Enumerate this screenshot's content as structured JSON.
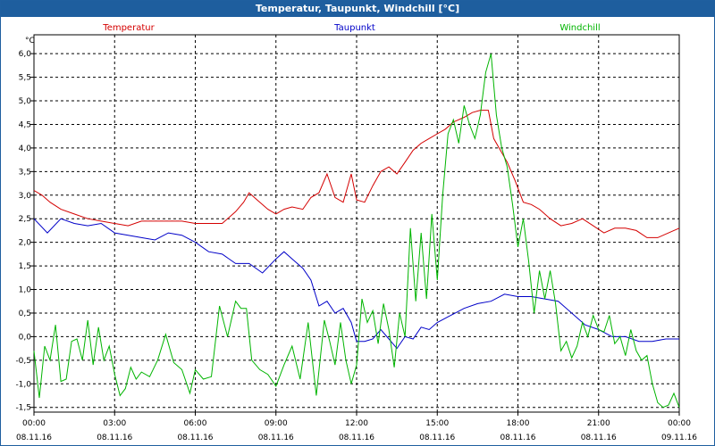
{
  "window": {
    "title": "Temperatur, Taupunkt, Windchill [°C]"
  },
  "chart_data": {
    "type": "line",
    "title": "Temperatur, Taupunkt, Windchill [°C]",
    "ylabel": "°C",
    "ylim": [
      -1.6,
      6.4
    ],
    "yticks": [
      6.0,
      5.5,
      5.0,
      4.5,
      4.0,
      3.5,
      3.0,
      2.5,
      2.0,
      1.5,
      1.0,
      0.5,
      0.0,
      -0.5,
      -1.0,
      -1.5
    ],
    "ytick_labels": [
      "6,0",
      "5,5",
      "5,0",
      "4,5",
      "4,0",
      "3,5",
      "3,0",
      "2,5",
      "2,0",
      "1,5",
      "1,0",
      "0,5",
      "0,0",
      "-0,5",
      "-1,0",
      "-1,5"
    ],
    "xlim": [
      0,
      24
    ],
    "xticks": [
      0,
      3,
      6,
      9,
      12,
      15,
      18,
      21,
      24
    ],
    "xtick_times": [
      "00:00",
      "03:00",
      "06:00",
      "09:00",
      "12:00",
      "15:00",
      "18:00",
      "21:00",
      "00:00"
    ],
    "xtick_dates": [
      "08.11.16",
      "08.11.16",
      "08.11.16",
      "08.11.16",
      "08.11.16",
      "08.11.16",
      "08.11.16",
      "08.11.16",
      "09.11.16"
    ],
    "grid": true,
    "series": [
      {
        "name": "Temperatur",
        "color": "#d40000",
        "x": [
          0,
          0.3,
          0.6,
          1,
          1.5,
          2,
          2.5,
          3,
          3.5,
          4,
          4.5,
          5,
          5.5,
          6,
          6.5,
          7,
          7.5,
          7.8,
          8,
          8.3,
          8.7,
          9,
          9.3,
          9.6,
          10,
          10.3,
          10.6,
          10.9,
          11.2,
          11.5,
          11.8,
          12,
          12.3,
          12.6,
          12.9,
          13.2,
          13.5,
          13.8,
          14.1,
          14.4,
          14.7,
          15,
          15.3,
          15.6,
          16,
          16.3,
          16.6,
          16.9,
          17.1,
          17.3,
          17.6,
          17.9,
          18.2,
          18.5,
          18.8,
          19.2,
          19.6,
          20,
          20.4,
          20.8,
          21.2,
          21.6,
          22,
          22.4,
          22.8,
          23.2,
          23.6,
          24
        ],
        "values": [
          3.1,
          3.0,
          2.85,
          2.7,
          2.6,
          2.5,
          2.45,
          2.4,
          2.35,
          2.45,
          2.45,
          2.45,
          2.45,
          2.4,
          2.4,
          2.4,
          2.65,
          2.85,
          3.05,
          2.9,
          2.7,
          2.6,
          2.7,
          2.75,
          2.7,
          2.95,
          3.05,
          3.45,
          2.95,
          2.85,
          3.45,
          2.9,
          2.85,
          3.2,
          3.5,
          3.6,
          3.45,
          3.7,
          3.95,
          4.1,
          4.2,
          4.3,
          4.4,
          4.55,
          4.65,
          4.75,
          4.8,
          4.8,
          4.2,
          4.0,
          3.7,
          3.3,
          2.85,
          2.8,
          2.7,
          2.5,
          2.35,
          2.4,
          2.5,
          2.35,
          2.2,
          2.3,
          2.3,
          2.25,
          2.1,
          2.1,
          2.2,
          2.3
        ]
      },
      {
        "name": "Taupunkt",
        "color": "#0000c8",
        "x": [
          0,
          0.5,
          1,
          1.5,
          2,
          2.5,
          3,
          3.5,
          4,
          4.5,
          5,
          5.5,
          6,
          6.5,
          7,
          7.5,
          8,
          8.5,
          9,
          9.3,
          9.6,
          10,
          10.3,
          10.6,
          10.9,
          11.2,
          11.5,
          11.8,
          12,
          12.3,
          12.6,
          12.9,
          13.2,
          13.5,
          13.8,
          14.1,
          14.4,
          14.7,
          15,
          15.5,
          16,
          16.5,
          17,
          17.5,
          18,
          18.5,
          19,
          19.5,
          20,
          20.5,
          21,
          21.5,
          22,
          22.5,
          23,
          23.5,
          24
        ],
        "values": [
          2.5,
          2.2,
          2.5,
          2.4,
          2.35,
          2.4,
          2.2,
          2.15,
          2.1,
          2.05,
          2.2,
          2.15,
          2.0,
          1.8,
          1.75,
          1.55,
          1.55,
          1.35,
          1.65,
          1.8,
          1.65,
          1.45,
          1.2,
          0.65,
          0.75,
          0.5,
          0.6,
          0.3,
          -0.1,
          -0.1,
          -0.05,
          0.15,
          -0.05,
          -0.25,
          0.0,
          -0.05,
          0.2,
          0.15,
          0.3,
          0.45,
          0.6,
          0.7,
          0.75,
          0.9,
          0.85,
          0.85,
          0.8,
          0.75,
          0.5,
          0.25,
          0.15,
          0.0,
          0.0,
          -0.1,
          -0.1,
          -0.05,
          -0.05
        ]
      },
      {
        "name": "Windchill",
        "color": "#00b400",
        "x": [
          0,
          0.2,
          0.4,
          0.6,
          0.8,
          1.0,
          1.2,
          1.4,
          1.6,
          1.8,
          2.0,
          2.2,
          2.4,
          2.6,
          2.8,
          3.0,
          3.2,
          3.4,
          3.6,
          3.8,
          4.0,
          4.3,
          4.6,
          4.9,
          5.2,
          5.5,
          5.8,
          6.0,
          6.3,
          6.6,
          6.9,
          7.2,
          7.5,
          7.7,
          7.9,
          8.1,
          8.4,
          8.7,
          9.0,
          9.3,
          9.6,
          9.9,
          10.2,
          10.5,
          10.8,
          11.0,
          11.2,
          11.4,
          11.6,
          11.8,
          12.0,
          12.2,
          12.4,
          12.6,
          12.8,
          13.0,
          13.2,
          13.4,
          13.6,
          13.8,
          14.0,
          14.2,
          14.4,
          14.6,
          14.8,
          15.0,
          15.2,
          15.4,
          15.6,
          15.8,
          16.0,
          16.2,
          16.4,
          16.6,
          16.8,
          17.0,
          17.2,
          17.4,
          17.6,
          17.8,
          18.0,
          18.2,
          18.4,
          18.6,
          18.8,
          19.0,
          19.2,
          19.4,
          19.6,
          19.8,
          20.0,
          20.2,
          20.4,
          20.6,
          20.8,
          21.0,
          21.2,
          21.4,
          21.6,
          21.8,
          22.0,
          22.2,
          22.4,
          22.6,
          22.8,
          23.0,
          23.2,
          23.4,
          23.6,
          23.8,
          24.0
        ],
        "values": [
          -0.3,
          -1.3,
          -0.2,
          -0.5,
          0.25,
          -0.95,
          -0.9,
          -0.1,
          -0.05,
          -0.5,
          0.35,
          -0.6,
          0.2,
          -0.5,
          -0.2,
          -0.8,
          -1.25,
          -1.1,
          -0.65,
          -0.9,
          -0.75,
          -0.85,
          -0.5,
          0.05,
          -0.55,
          -0.7,
          -1.2,
          -0.7,
          -0.9,
          -0.85,
          0.65,
          0.0,
          0.75,
          0.6,
          0.6,
          -0.5,
          -0.7,
          -0.8,
          -1.05,
          -0.6,
          -0.2,
          -0.9,
          0.3,
          -1.25,
          0.35,
          -0.1,
          -0.6,
          0.3,
          -0.5,
          -1.0,
          -0.6,
          0.8,
          0.3,
          0.55,
          -0.15,
          0.7,
          0.15,
          -0.65,
          0.5,
          0.0,
          2.3,
          0.75,
          2.2,
          0.8,
          2.6,
          1.2,
          3.0,
          4.3,
          4.6,
          4.1,
          4.9,
          4.5,
          4.2,
          4.7,
          5.6,
          6.0,
          4.7,
          4.0,
          3.6,
          2.8,
          1.9,
          2.5,
          1.6,
          0.5,
          1.4,
          0.8,
          1.4,
          0.7,
          -0.3,
          -0.1,
          -0.45,
          -0.2,
          0.3,
          0.0,
          0.45,
          0.15,
          0.1,
          0.45,
          -0.15,
          0.0,
          -0.4,
          0.15,
          -0.3,
          -0.5,
          -0.4,
          -1.0,
          -1.4,
          -1.5,
          -1.45,
          -1.2,
          -1.5
        ]
      }
    ]
  }
}
